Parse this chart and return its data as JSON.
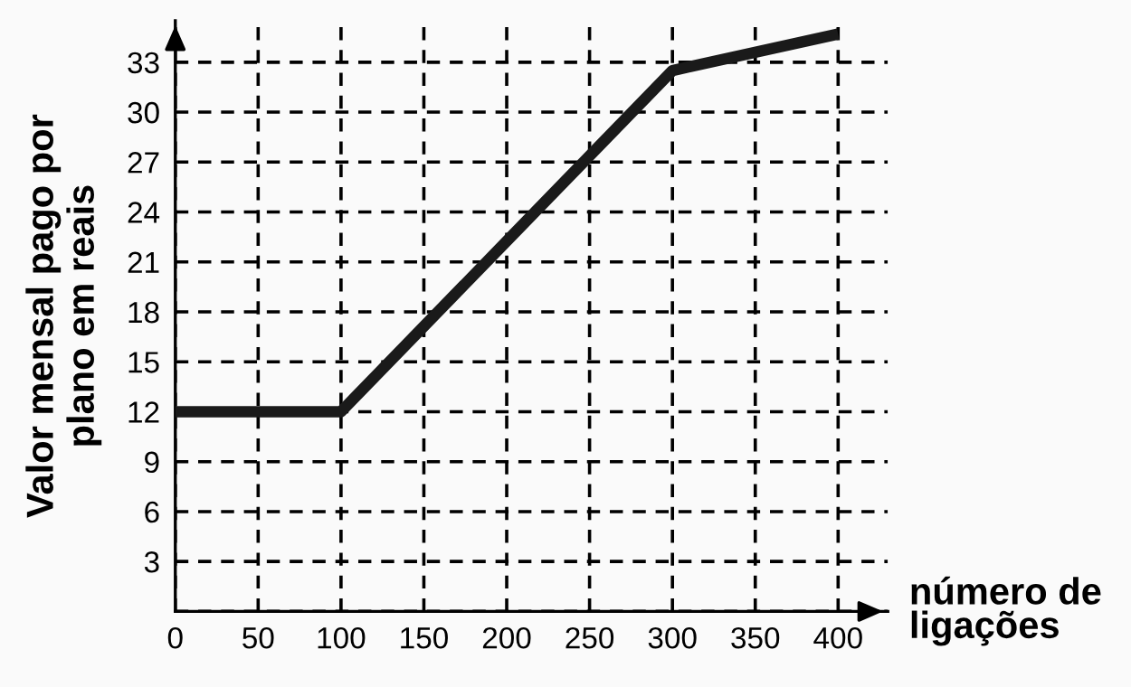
{
  "chart_data": {
    "type": "line",
    "xlabel": "número de\nligações",
    "ylabel": "Valor mensal pago por\nplano em reais",
    "x": [
      0,
      100,
      300,
      400
    ],
    "series": [
      {
        "color": "#1a1a1a",
        "values": [
          12,
          12,
          32.5,
          34.7
        ]
      }
    ],
    "xlim": [
      0,
      430
    ],
    "ylim": [
      0,
      35.5
    ],
    "xticks": [
      0,
      50,
      100,
      150,
      200,
      250,
      300,
      350,
      400
    ],
    "yticks": [
      {
        "value": 0,
        "label": null
      },
      3,
      6,
      9,
      12,
      15,
      18,
      21,
      24,
      27,
      30,
      33
    ],
    "grid": true,
    "marker": "none",
    "line_style": "solid"
  }
}
